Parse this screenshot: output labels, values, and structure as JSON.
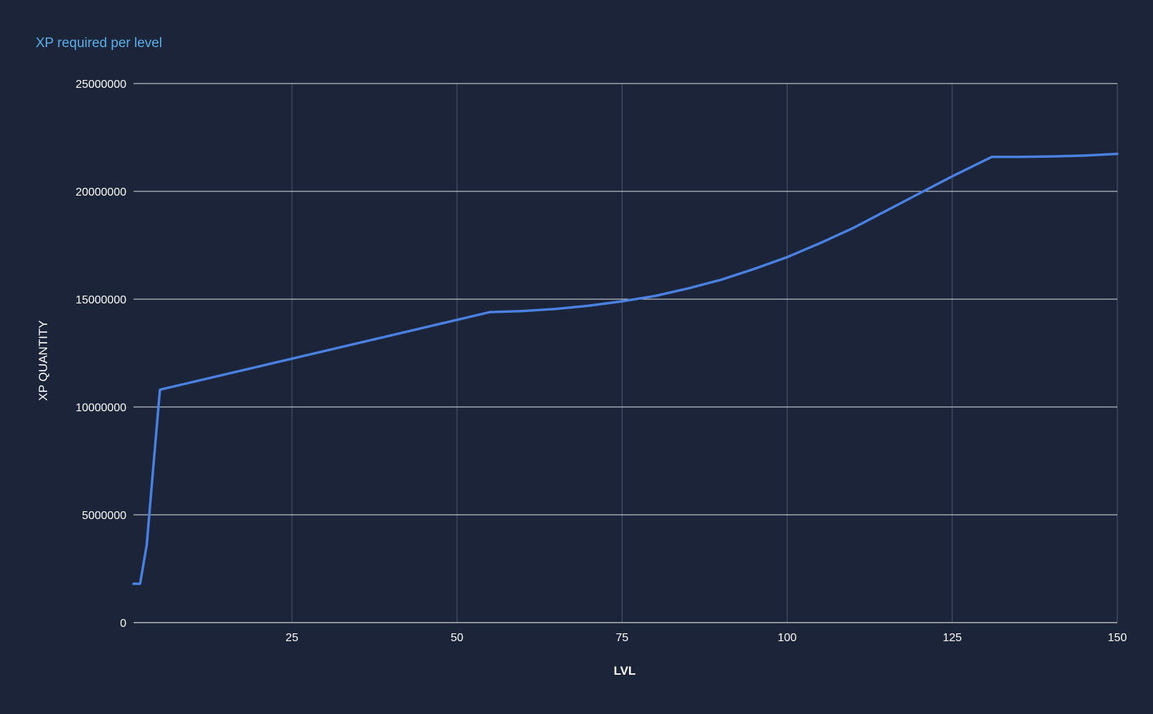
{
  "chart_data": {
    "type": "line",
    "title": "XP required per level",
    "xlabel": "LVL",
    "ylabel": "XP QUANTITY",
    "xlim": [
      1,
      150
    ],
    "ylim": [
      0,
      25000000
    ],
    "x_ticks": [
      25,
      50,
      75,
      100,
      125,
      150
    ],
    "y_ticks": [
      0,
      5000000,
      10000000,
      15000000,
      20000000,
      25000000
    ],
    "grid": true,
    "legend": "none",
    "series": [
      {
        "color": "#4a80e0",
        "x": [
          1,
          2,
          3,
          4,
          5,
          55,
          60,
          65,
          70,
          75,
          80,
          85,
          90,
          95,
          100,
          105,
          110,
          115,
          120,
          125,
          131,
          135,
          140,
          145,
          150
        ],
        "y": [
          1800000,
          1800000,
          3600000,
          7200000,
          10800000,
          14400000,
          14450000,
          14550000,
          14700000,
          14900000,
          15150000,
          15500000,
          15900000,
          16400000,
          16950000,
          17600000,
          18300000,
          19100000,
          19900000,
          20700000,
          21600000,
          21600000,
          21620000,
          21660000,
          21740000
        ]
      }
    ]
  }
}
